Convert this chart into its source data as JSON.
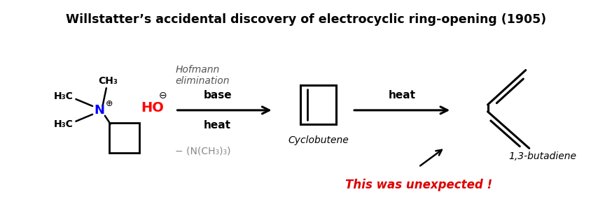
{
  "title": "Willstatter’s accidental discovery of electrocyclic ring-opening (1905)",
  "title_fontsize": 12.5,
  "bg_color": "#ffffff",
  "hofmann_text": "Hofmann\nelimination",
  "minus_nch3": "− (N(CH₃)₃)",
  "cyclobutene_label": "Cyclobutene",
  "butadiene_label": "1,3-butadiene",
  "unexpected_text": "This was unexpected !",
  "unexpected_color": "#dd0000"
}
